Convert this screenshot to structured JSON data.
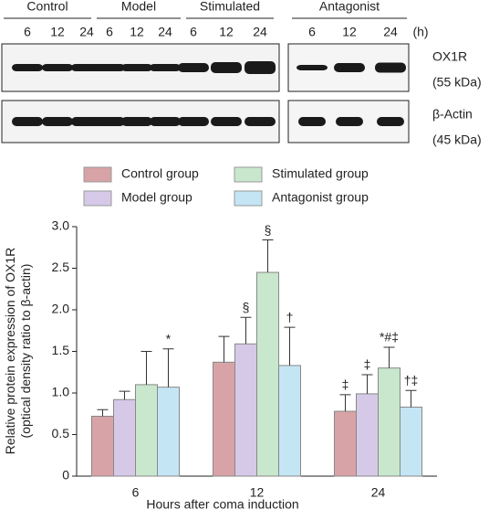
{
  "blot": {
    "groups": [
      "Control",
      "Model",
      "Stimulated",
      "Antagonist"
    ],
    "times": [
      "6",
      "12",
      "24"
    ],
    "unit": "(h)",
    "rows": [
      {
        "label": "OX1R",
        "size": "(55 kDa)"
      },
      {
        "label": "β-Actin",
        "size": "(45 kDa)"
      }
    ]
  },
  "chart_data": {
    "type": "bar",
    "xlabel": "Hours after coma induction",
    "ylabel": [
      "Relative protein expression of OX1R",
      "(optical density ratio to β-actin)"
    ],
    "categories": [
      "6",
      "12",
      "24"
    ],
    "series": [
      {
        "name": "Control group",
        "color": "#d8a3a6",
        "values": [
          0.72,
          1.37,
          0.78
        ],
        "errors": [
          0.08,
          0.31,
          0.2
        ],
        "annotations": [
          null,
          null,
          "‡"
        ]
      },
      {
        "name": "Model group",
        "color": "#d6c9e8",
        "values": [
          0.92,
          1.59,
          0.99
        ],
        "errors": [
          0.1,
          0.32,
          0.23
        ],
        "annotations": [
          null,
          "§",
          "‡"
        ]
      },
      {
        "name": "Stimulated group",
        "color": "#c9e7cd",
        "values": [
          1.1,
          2.45,
          1.3
        ],
        "errors": [
          0.4,
          0.39,
          0.25
        ],
        "annotations": [
          null,
          "§",
          "*#‡"
        ]
      },
      {
        "name": "Antagonist group",
        "color": "#c4e5f4",
        "values": [
          1.07,
          1.33,
          0.83
        ],
        "errors": [
          0.46,
          0.46,
          0.2
        ],
        "annotations": [
          "*",
          "†",
          "†‡"
        ]
      }
    ],
    "ylim": [
      0,
      3
    ],
    "yticks": [
      0,
      0.5,
      {
        "value": 1,
        "label": "1.0"
      },
      1.5,
      {
        "value": 2,
        "label": "2.0"
      },
      2.5,
      {
        "value": 3,
        "label": "3.0"
      }
    ],
    "legend": "top"
  }
}
